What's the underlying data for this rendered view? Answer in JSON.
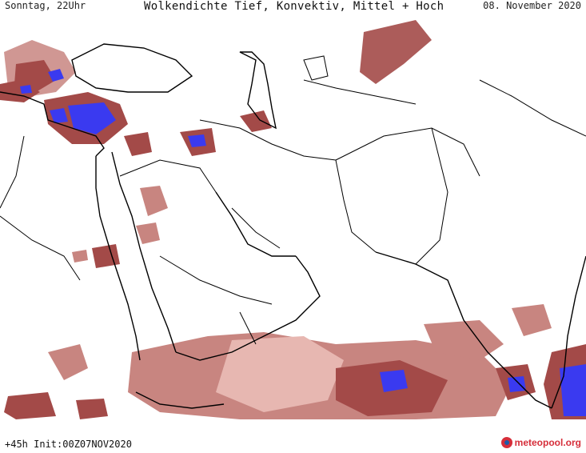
{
  "header": {
    "valid_time": "Sonntag, 22Uhr",
    "title": "Wolkendichte  Tief, Konvektiv, Mittel + Hoch",
    "date": "08. November 2020"
  },
  "footer": {
    "forecast_info": "+45h Init:00Z07NOV2020",
    "logo": "meteopool.org"
  },
  "colors": {
    "ocean": "#ffffff",
    "border": "#000000",
    "cloud_light": "#e7b7b1",
    "cloud_medium": "#c88580",
    "cloud_dark": "#a34a48",
    "cloud_deepest": "#3a3af0"
  }
}
